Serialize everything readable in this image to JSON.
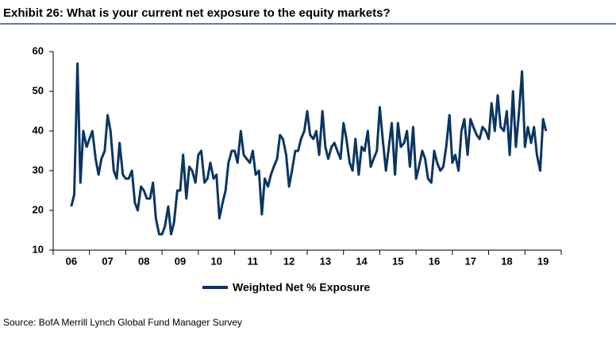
{
  "chart_data": {
    "type": "line",
    "title": "Exhibit 26: What is your current net exposure to the equity markets?",
    "source": "Source:  BofA Merrill Lynch Global Fund Manager Survey",
    "xlim": [
      2006,
      2020
    ],
    "xticks": [
      {
        "value": 2006.5,
        "label": "06"
      },
      {
        "value": 2007.5,
        "label": "07"
      },
      {
        "value": 2008.5,
        "label": "08"
      },
      {
        "value": 2009.5,
        "label": "09"
      },
      {
        "value": 2010.5,
        "label": "10"
      },
      {
        "value": 2011.5,
        "label": "11"
      },
      {
        "value": 2012.5,
        "label": "12"
      },
      {
        "value": 2013.5,
        "label": "13"
      },
      {
        "value": 2014.5,
        "label": "14"
      },
      {
        "value": 2015.5,
        "label": "15"
      },
      {
        "value": 2016.5,
        "label": "16"
      },
      {
        "value": 2017.5,
        "label": "17"
      },
      {
        "value": 2018.5,
        "label": "18"
      },
      {
        "value": 2019.5,
        "label": "19"
      }
    ],
    "ylim": [
      10,
      60
    ],
    "yticks": [
      10,
      20,
      30,
      40,
      50,
      60
    ],
    "grid": false,
    "x": [
      2006.5,
      2006.58,
      2006.67,
      2006.75,
      2006.83,
      2006.92,
      2007,
      2007.08,
      2007.17,
      2007.25,
      2007.33,
      2007.42,
      2007.5,
      2007.58,
      2007.67,
      2007.75,
      2007.83,
      2007.92,
      2008,
      2008.08,
      2008.17,
      2008.25,
      2008.33,
      2008.42,
      2008.5,
      2008.58,
      2008.67,
      2008.75,
      2008.83,
      2008.92,
      2009,
      2009.08,
      2009.17,
      2009.25,
      2009.33,
      2009.42,
      2009.5,
      2009.58,
      2009.67,
      2009.75,
      2009.83,
      2009.92,
      2010,
      2010.08,
      2010.17,
      2010.25,
      2010.33,
      2010.42,
      2010.5,
      2010.58,
      2010.67,
      2010.75,
      2010.83,
      2010.92,
      2011,
      2011.08,
      2011.17,
      2011.25,
      2011.33,
      2011.42,
      2011.5,
      2011.58,
      2011.67,
      2011.75,
      2011.83,
      2011.92,
      2012,
      2012.08,
      2012.17,
      2012.25,
      2012.33,
      2012.42,
      2012.5,
      2012.58,
      2012.67,
      2012.75,
      2012.83,
      2012.92,
      2013,
      2013.08,
      2013.17,
      2013.25,
      2013.33,
      2013.42,
      2013.5,
      2013.58,
      2013.67,
      2013.75,
      2013.83,
      2013.92,
      2014,
      2014.08,
      2014.17,
      2014.25,
      2014.33,
      2014.42,
      2014.5,
      2014.58,
      2014.67,
      2014.75,
      2014.83,
      2014.92,
      2015,
      2015.08,
      2015.17,
      2015.25,
      2015.33,
      2015.42,
      2015.5,
      2015.58,
      2015.67,
      2015.75,
      2015.83,
      2015.92,
      2016,
      2016.08,
      2016.17,
      2016.25,
      2016.33,
      2016.42,
      2016.5,
      2016.58,
      2016.67,
      2016.75,
      2016.83,
      2016.92,
      2017,
      2017.08,
      2017.17,
      2017.25,
      2017.33,
      2017.42,
      2017.5,
      2017.58,
      2017.67,
      2017.75,
      2017.83,
      2017.92,
      2018,
      2018.08,
      2018.17,
      2018.25,
      2018.33,
      2018.42,
      2018.5,
      2018.58,
      2018.67,
      2018.75,
      2018.83,
      2018.92,
      2019,
      2019.08,
      2019.17,
      2019.25,
      2019.33,
      2019.42,
      2019.5,
      2019.58
    ],
    "series": [
      {
        "name": "Weighted Net % Exposure",
        "color": "#0b3563",
        "values": [
          21,
          24,
          57,
          27,
          40,
          36,
          38,
          40,
          33,
          29,
          33,
          35,
          44,
          40,
          30,
          28,
          37,
          29,
          28,
          28,
          30,
          22,
          20,
          26,
          25,
          23,
          23,
          27,
          18,
          14,
          14,
          16,
          21,
          14,
          17,
          25,
          25,
          34,
          23,
          31,
          30,
          27,
          34,
          35,
          27,
          28,
          32,
          28,
          29,
          18,
          22,
          25,
          32,
          35,
          35,
          32,
          40,
          34,
          33,
          32,
          35,
          29,
          30,
          19,
          28,
          26,
          29,
          31,
          33,
          39,
          38,
          34,
          26,
          30,
          35,
          35,
          38,
          40,
          45,
          39,
          38,
          40,
          34,
          45,
          36,
          33,
          36,
          37,
          35,
          33,
          42,
          38,
          32,
          30,
          38,
          29,
          36,
          35,
          40,
          31,
          33,
          35,
          46,
          38,
          30,
          36,
          42,
          29,
          42,
          36,
          37,
          40,
          31,
          41,
          28,
          31,
          35,
          33,
          28,
          27,
          35,
          32,
          30,
          31,
          36,
          44,
          32,
          34,
          30,
          40,
          43,
          34,
          43,
          41,
          39,
          38,
          41,
          40,
          38,
          47,
          40,
          49,
          41,
          40,
          45,
          34,
          50,
          36,
          44,
          55,
          36,
          41,
          37,
          41,
          34,
          30,
          43,
          40
        ]
      }
    ]
  }
}
